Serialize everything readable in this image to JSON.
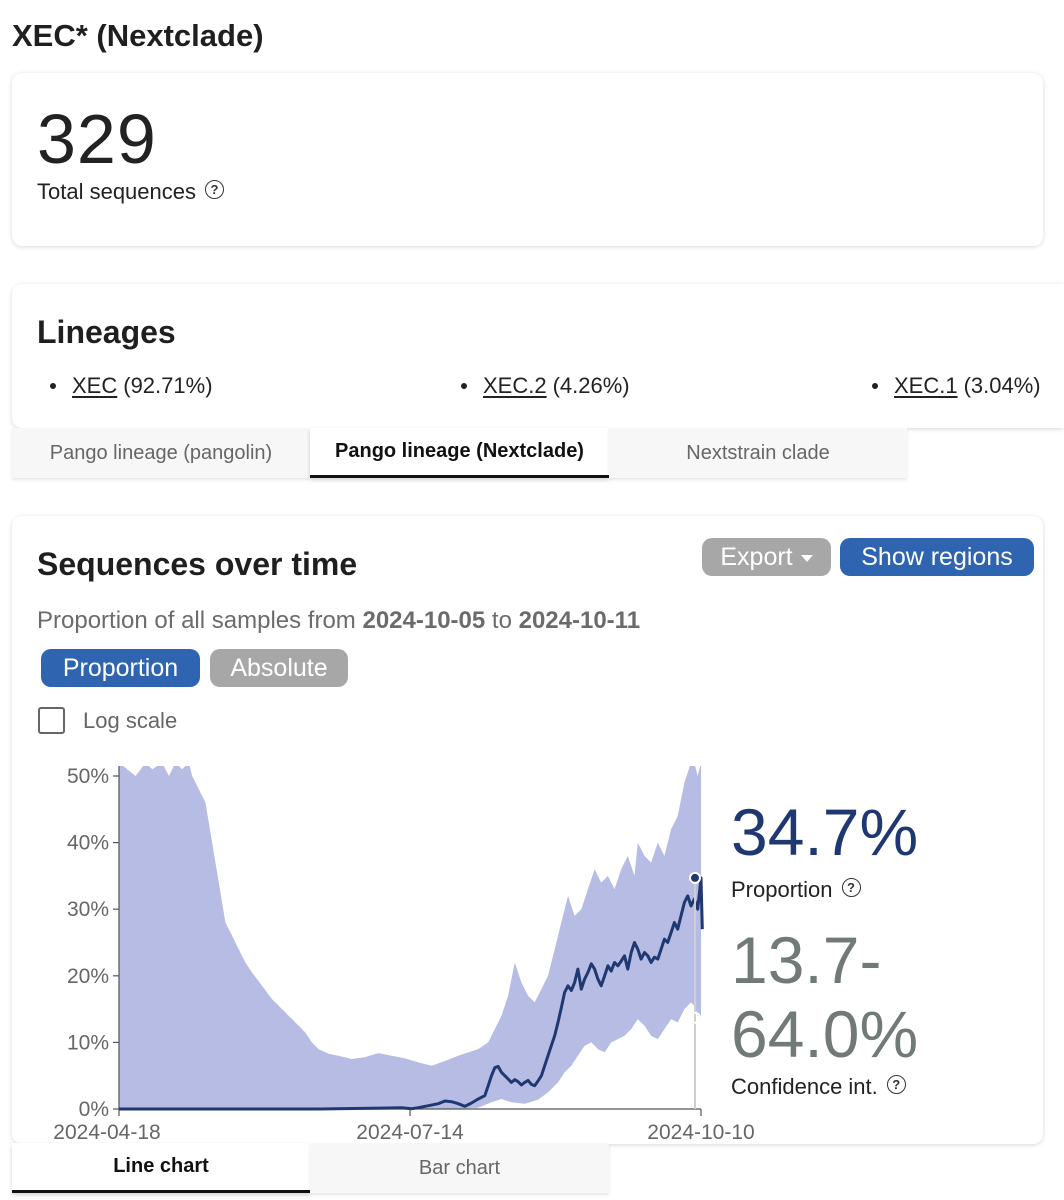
{
  "page_title": "XEC* (Nextclade)",
  "total": {
    "value": "329",
    "label": "Total sequences"
  },
  "lineages": {
    "title": "Lineages",
    "items": [
      {
        "name": "XEC",
        "pct": "(92.71%)"
      },
      {
        "name": "XEC.2",
        "pct": "(4.26%)"
      },
      {
        "name": "XEC.1",
        "pct": "(3.04%)"
      }
    ]
  },
  "lineage_tabs": [
    {
      "label": "Pango lineage (pangolin)",
      "active": false
    },
    {
      "label": "Pango lineage (Nextclade)",
      "active": true
    },
    {
      "label": "Nextstrain clade",
      "active": false
    }
  ],
  "chart_card": {
    "title": "Sequences over time",
    "export_label": "Export",
    "regions_label": "Show regions",
    "subtitle_prefix": "Proportion of all samples from",
    "date_from": "2024-10-05",
    "subtitle_mid": "to",
    "date_to": "2024-10-11",
    "mode_proportion": "Proportion",
    "mode_absolute": "Absolute",
    "log_scale_label": "Log scale",
    "log_scale_checked": false,
    "proportion_value": "34.7%",
    "proportion_label": "Proportion",
    "ci_value_line1": "13.7-",
    "ci_value_line2": "64.0%",
    "ci_label": "Confidence int."
  },
  "chart_tabs": [
    {
      "label": "Line chart",
      "active": true
    },
    {
      "label": "Bar chart",
      "active": false
    }
  ],
  "colors": {
    "line": "#1f3872",
    "band": "#b6bce3",
    "accent": "#2e64b0",
    "gray_button": "#a7a7a7"
  },
  "chart_data": {
    "type": "line",
    "ylim": [
      0,
      50
    ],
    "y_ticks": [
      "0%",
      "10%",
      "20%",
      "30%",
      "40%",
      "50%"
    ],
    "x_tick_labels": [
      "2024-04-18",
      "2024-07-14",
      "2024-10-10"
    ],
    "x_range_days": 175,
    "series": [
      {
        "points": [
          [
            0,
            0
          ],
          [
            30,
            0
          ],
          [
            60,
            0
          ],
          [
            76,
            0.1
          ],
          [
            85,
            0.2
          ],
          [
            88,
            0.05
          ],
          [
            90,
            0.2
          ],
          [
            96,
            0.8
          ],
          [
            98,
            1.2
          ],
          [
            100,
            1.1
          ],
          [
            102,
            0.8
          ],
          [
            104,
            0.4
          ],
          [
            106,
            0.9
          ],
          [
            108,
            1.5
          ],
          [
            110,
            2
          ],
          [
            111,
            3.5
          ],
          [
            112,
            5
          ],
          [
            113,
            6.2
          ],
          [
            114,
            6.4
          ],
          [
            115,
            5.5
          ],
          [
            116,
            5
          ],
          [
            117,
            4.5
          ],
          [
            118,
            4
          ],
          [
            119,
            4.4
          ],
          [
            120,
            4.1
          ],
          [
            121,
            3.6
          ],
          [
            122,
            4
          ],
          [
            123,
            4.3
          ],
          [
            124,
            3.7
          ],
          [
            125,
            3.5
          ],
          [
            126,
            4.2
          ],
          [
            127,
            5
          ],
          [
            128,
            6.5
          ],
          [
            129,
            8
          ],
          [
            130,
            9.5
          ],
          [
            131,
            11
          ],
          [
            132,
            13
          ],
          [
            133,
            15.2
          ],
          [
            134,
            17.5
          ],
          [
            135,
            18.5
          ],
          [
            136,
            17.8
          ],
          [
            137,
            19
          ],
          [
            138,
            21
          ],
          [
            139,
            18
          ],
          [
            140,
            19.5
          ],
          [
            141,
            20.5
          ],
          [
            142,
            21.8
          ],
          [
            143,
            21
          ],
          [
            144,
            19.5
          ],
          [
            145,
            18.5
          ],
          [
            146,
            20
          ],
          [
            147,
            21.5
          ],
          [
            148,
            20.7
          ],
          [
            149,
            22
          ],
          [
            150,
            21.5
          ],
          [
            151,
            22.2
          ],
          [
            152,
            23
          ],
          [
            153,
            21
          ],
          [
            154,
            23.5
          ],
          [
            155,
            25
          ],
          [
            156,
            24
          ],
          [
            157,
            22.5
          ],
          [
            158,
            23.5
          ],
          [
            159,
            23
          ],
          [
            160,
            22
          ],
          [
            161,
            22.8
          ],
          [
            162,
            22.5
          ],
          [
            163,
            24
          ],
          [
            164,
            25.5
          ],
          [
            165,
            25
          ],
          [
            166,
            26.5
          ],
          [
            167,
            28
          ],
          [
            168,
            27
          ],
          [
            169,
            29
          ],
          [
            170,
            31
          ],
          [
            171,
            32
          ],
          [
            172,
            30.5
          ],
          [
            173,
            31.5
          ],
          [
            174,
            30
          ],
          [
            175,
            34.7
          ],
          [
            175.4,
            27
          ]
        ]
      }
    ],
    "confidence_band": {
      "upper": [
        [
          0,
          52
        ],
        [
          5,
          50
        ],
        [
          8,
          52
        ],
        [
          10,
          51
        ],
        [
          13,
          52
        ],
        [
          15,
          50
        ],
        [
          17,
          52
        ],
        [
          19,
          51
        ],
        [
          21,
          52
        ],
        [
          22,
          50
        ],
        [
          24,
          48
        ],
        [
          26,
          46
        ],
        [
          28,
          40
        ],
        [
          30,
          34
        ],
        [
          32,
          28
        ],
        [
          34,
          26
        ],
        [
          36,
          24
        ],
        [
          38,
          22
        ],
        [
          40,
          20.5
        ],
        [
          43,
          18.5
        ],
        [
          46,
          16.5
        ],
        [
          50,
          14.5
        ],
        [
          53,
          13
        ],
        [
          56,
          11.5
        ],
        [
          58,
          10
        ],
        [
          60,
          9
        ],
        [
          63,
          8.3
        ],
        [
          66,
          8
        ],
        [
          70,
          7.5
        ],
        [
          74,
          7.8
        ],
        [
          78,
          8.4
        ],
        [
          82,
          8
        ],
        [
          86,
          7.6
        ],
        [
          90,
          7
        ],
        [
          94,
          6.5
        ],
        [
          98,
          7.2
        ],
        [
          102,
          8
        ],
        [
          105,
          8.5
        ],
        [
          108,
          9
        ],
        [
          111,
          10
        ],
        [
          113,
          12
        ],
        [
          115,
          14
        ],
        [
          117,
          17
        ],
        [
          119,
          22
        ],
        [
          121,
          19
        ],
        [
          123,
          17
        ],
        [
          125,
          16
        ],
        [
          127,
          18
        ],
        [
          129,
          20
        ],
        [
          131,
          24
        ],
        [
          133,
          28
        ],
        [
          135,
          32
        ],
        [
          137,
          29
        ],
        [
          139,
          30
        ],
        [
          141,
          33
        ],
        [
          143,
          36
        ],
        [
          145,
          34
        ],
        [
          147,
          35
        ],
        [
          149,
          33
        ],
        [
          151,
          36
        ],
        [
          153,
          38
        ],
        [
          155,
          35
        ],
        [
          156,
          40
        ],
        [
          158,
          38
        ],
        [
          160,
          37
        ],
        [
          162,
          40
        ],
        [
          164,
          38
        ],
        [
          166,
          42
        ],
        [
          168,
          44
        ],
        [
          170,
          49
        ],
        [
          172,
          52
        ],
        [
          173,
          52
        ],
        [
          174,
          50
        ],
        [
          175,
          52
        ]
      ],
      "lower": [
        [
          0,
          0
        ],
        [
          60,
          0
        ],
        [
          100,
          0
        ],
        [
          108,
          0.2
        ],
        [
          112,
          1
        ],
        [
          115,
          1.5
        ],
        [
          118,
          1
        ],
        [
          122,
          0.8
        ],
        [
          126,
          1.4
        ],
        [
          129,
          2.5
        ],
        [
          132,
          4
        ],
        [
          134,
          5.5
        ],
        [
          136,
          6.5
        ],
        [
          138,
          8
        ],
        [
          140,
          9.5
        ],
        [
          142,
          10
        ],
        [
          144,
          9
        ],
        [
          146,
          8.5
        ],
        [
          148,
          10
        ],
        [
          150,
          10.5
        ],
        [
          152,
          11
        ],
        [
          154,
          12
        ],
        [
          156,
          13.5
        ],
        [
          158,
          12.5
        ],
        [
          160,
          11
        ],
        [
          162,
          10.5
        ],
        [
          164,
          12
        ],
        [
          166,
          13.5
        ],
        [
          168,
          13
        ],
        [
          170,
          15
        ],
        [
          172,
          16
        ],
        [
          173,
          15.5
        ],
        [
          174,
          14
        ],
        [
          175,
          13.7
        ],
        [
          175.4,
          2
        ]
      ]
    }
  }
}
